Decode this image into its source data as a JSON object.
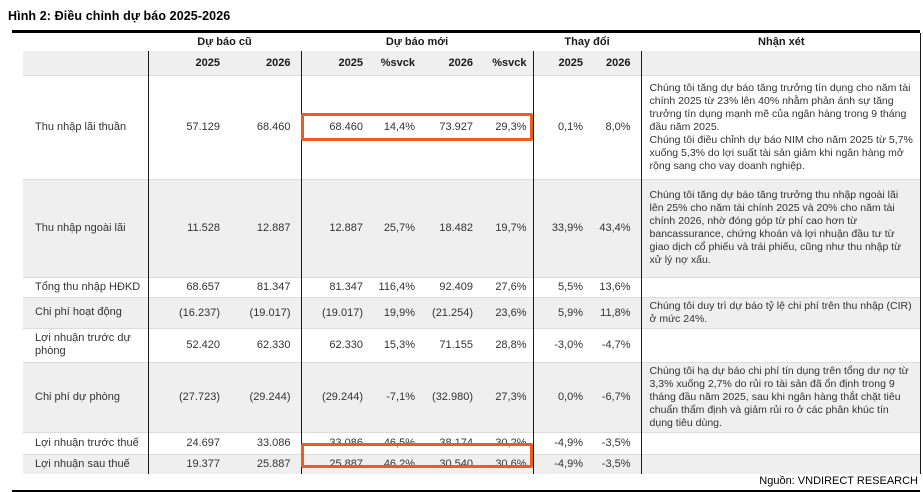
{
  "title": "Hình 2: Điều chỉnh dự báo 2025-2026",
  "source": "Nguồn: VNDIRECT RESEARCH",
  "colors": {
    "highlight_box": "#ee5b20",
    "row_shading": "#efefef",
    "rule": "#000000"
  },
  "table": {
    "groups": {
      "old": "Dự báo cũ",
      "new": "Dự báo mới",
      "change": "Thay đổi",
      "comment": "Nhận xét"
    },
    "subheaders": {
      "old_2025": "2025",
      "old_2026": "2026",
      "new_2025": "2025",
      "new_yoy_2025": "%svck",
      "new_2026": "2026",
      "new_yoy_2026": "%svck",
      "chg_2025": "2025",
      "chg_2026": "2026"
    },
    "rows": [
      {
        "label": "Thu nhập lãi thuần",
        "old_2025": "57.129",
        "old_2026": "68.460",
        "new_2025": "68.460",
        "new_yoy_2025": "14,4%",
        "new_2026": "73.927",
        "new_yoy_2026": "29,3%",
        "chg_2025": "0,1%",
        "chg_2026": "8,0%",
        "comment": "Chúng tôi tăng dự báo tăng trưởng tín dụng cho năm tài chính 2025 từ 23% lên 40% nhằm phản ánh sự tăng trưởng tín dụng mạnh mẽ của ngân hàng trong 9 tháng đầu năm 2025.\nChúng tôi điều chỉnh dự báo NIM cho năm 2025 từ 5,7% xuống 5,3% do lợi suất tài sản giảm khi ngân hàng mở rộng sang cho vay doanh nghiệp.",
        "highlighted": true
      },
      {
        "label": "Thu nhập ngoài lãi",
        "old_2025": "11.528",
        "old_2026": "12.887",
        "new_2025": "12.887",
        "new_yoy_2025": "25,7%",
        "new_2026": "18.482",
        "new_yoy_2026": "19,7%",
        "chg_2025": "33,9%",
        "chg_2026": "43,4%",
        "comment": "Chúng tôi tăng dự báo tăng trưởng thu nhập ngoài lãi lên 25% cho năm tài chính 2025 và 20% cho năm tài chính 2026, nhờ đóng góp từ phí cao hơn từ bancassurance, chứng khoán và lợi nhuận đầu tư từ giao dịch cổ phiếu và trái phiếu, cũng như thu nhập từ xử lý nợ xấu.",
        "highlighted": false
      },
      {
        "label": "Tổng thu nhập HĐKD",
        "old_2025": "68.657",
        "old_2026": "81.347",
        "new_2025": "81.347",
        "new_yoy_2025": "116,4%",
        "new_2026": "92.409",
        "new_yoy_2026": "27,6%",
        "chg_2025": "5,5%",
        "chg_2026": "13,6%",
        "comment": "",
        "highlighted": false
      },
      {
        "label": "Chi phí hoạt động",
        "old_2025": "(16.237)",
        "old_2026": "(19.017)",
        "new_2025": "(19.017)",
        "new_yoy_2025": "19,9%",
        "new_2026": "(21.254)",
        "new_yoy_2026": "23,6%",
        "chg_2025": "5,9%",
        "chg_2026": "11,8%",
        "comment": "Chúng tôi duy trì dự báo tỷ lệ chi phí trên thu nhập (CIR) ở mức 24%.",
        "highlighted": false
      },
      {
        "label": "Lợi nhuận trước dự phòng",
        "old_2025": "52.420",
        "old_2026": "62.330",
        "new_2025": "62.330",
        "new_yoy_2025": "15,3%",
        "new_2026": "71.155",
        "new_yoy_2026": "28,8%",
        "chg_2025": "-3,0%",
        "chg_2026": "-4,7%",
        "comment": "",
        "highlighted": false
      },
      {
        "label": "Chi phí dự phòng",
        "old_2025": "(27.723)",
        "old_2026": "(29.244)",
        "new_2025": "(29.244)",
        "new_yoy_2025": "-7,1%",
        "new_2026": "(32.980)",
        "new_yoy_2026": "27,3%",
        "chg_2025": "0,0%",
        "chg_2026": "-6,7%",
        "comment": "Chúng tôi hạ dự báo chi phí tín dụng trên tổng dư nợ từ 3,3% xuống 2,7% do rủi ro tài sản đã ổn định trong 9 tháng đầu năm 2025, sau khi ngân hàng thắt chặt tiêu chuẩn thẩm định và giảm rủi ro ở các phân khúc tín dụng tiêu dùng.",
        "highlighted": false
      },
      {
        "label": "Lợi nhuận trước thuế",
        "old_2025": "24.697",
        "old_2026": "33.086",
        "new_2025": "33.086",
        "new_yoy_2025": "46,5%",
        "new_2026": "38.174",
        "new_yoy_2026": "30,2%",
        "chg_2025": "-4,9%",
        "chg_2026": "-3,5%",
        "comment": "",
        "highlighted": false
      },
      {
        "label": "Lợi nhuận sau thuế",
        "old_2025": "19.377",
        "old_2026": "25.887",
        "new_2025": "25.887",
        "new_yoy_2025": "46,2%",
        "new_2026": "30.540",
        "new_yoy_2026": "30,6%",
        "chg_2025": "-4,9%",
        "chg_2026": "-3,5%",
        "comment": "",
        "highlighted": true
      }
    ]
  }
}
